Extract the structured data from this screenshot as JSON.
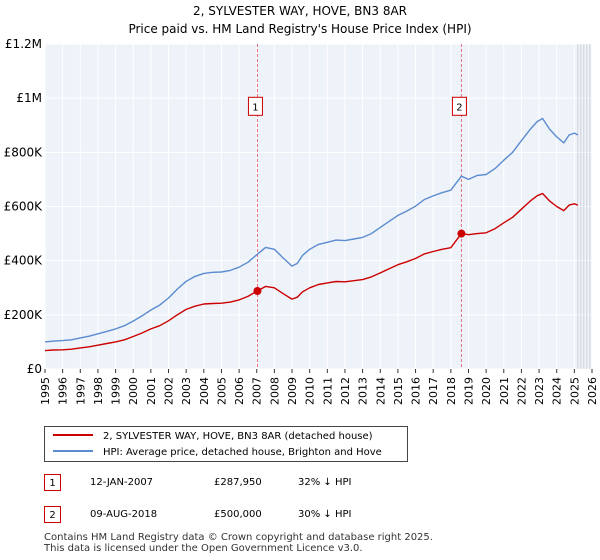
{
  "chart_data": {
    "type": "line",
    "title": "2, SYLVESTER WAY, HOVE, BN3 8AR",
    "subtitle": "Price paid vs. HM Land Registry's House Price Index (HPI)",
    "xlim": [
      1995,
      2026
    ],
    "ylim": [
      0,
      1200000
    ],
    "y_ticks": [
      {
        "value": 0,
        "label": "£0"
      },
      {
        "value": 200000,
        "label": "£200K"
      },
      {
        "value": 400000,
        "label": "£400K"
      },
      {
        "value": 600000,
        "label": "£600K"
      },
      {
        "value": 800000,
        "label": "£800K"
      },
      {
        "value": 1000000,
        "label": "£1M"
      },
      {
        "value": 1200000,
        "label": "£1.2M"
      }
    ],
    "x_ticks": [
      "1995",
      "1996",
      "1997",
      "1998",
      "1999",
      "2000",
      "2001",
      "2002",
      "2003",
      "2004",
      "2005",
      "2006",
      "2007",
      "2008",
      "2009",
      "2010",
      "2011",
      "2012",
      "2013",
      "2014",
      "2015",
      "2016",
      "2017",
      "2018",
      "2019",
      "2020",
      "2021",
      "2022",
      "2023",
      "2024",
      "2025",
      "2026"
    ],
    "grid": true,
    "series": [
      {
        "name": "2, SYLVESTER WAY, HOVE, BN3 8AR (detached house)",
        "color": "#cc0000",
        "x": [
          1995.0,
          1995.5,
          1996.0,
          1996.5,
          1997.0,
          1997.5,
          1998.0,
          1998.5,
          1999.0,
          1999.5,
          2000.0,
          2000.5,
          2001.0,
          2001.5,
          2002.0,
          2002.5,
          2003.0,
          2003.5,
          2004.0,
          2004.5,
          2005.0,
          2005.5,
          2006.0,
          2006.5,
          2007.04,
          2007.5,
          2008.0,
          2008.5,
          2009.0,
          2009.3,
          2009.6,
          2010.0,
          2010.5,
          2011.0,
          2011.5,
          2012.0,
          2012.5,
          2013.0,
          2013.5,
          2014.0,
          2014.5,
          2015.0,
          2015.5,
          2016.0,
          2016.5,
          2017.0,
          2017.5,
          2018.0,
          2018.6,
          2019.0,
          2019.5,
          2020.0,
          2020.5,
          2021.0,
          2021.5,
          2022.0,
          2022.5,
          2022.9,
          2023.2,
          2023.6,
          2024.0,
          2024.4,
          2024.7,
          2025.0,
          2025.2
        ],
        "values": [
          68000,
          70000,
          71000,
          73000,
          78000,
          82000,
          88000,
          94000,
          100000,
          108000,
          120000,
          133000,
          148000,
          160000,
          178000,
          200000,
          220000,
          232000,
          240000,
          242000,
          243000,
          247000,
          255000,
          268000,
          287950,
          305000,
          300000,
          278000,
          258000,
          265000,
          285000,
          300000,
          312000,
          318000,
          323000,
          322000,
          326000,
          330000,
          340000,
          355000,
          370000,
          385000,
          396000,
          408000,
          425000,
          434000,
          442000,
          448000,
          500000,
          496000,
          500000,
          503000,
          518000,
          540000,
          560000,
          590000,
          620000,
          640000,
          648000,
          620000,
          600000,
          585000,
          605000,
          610000,
          605000
        ]
      },
      {
        "name": "HPI: Average price, detached house, Brighton and Hove",
        "color": "#5b8bd0",
        "x": [
          1995.0,
          1995.5,
          1996.0,
          1996.5,
          1997.0,
          1997.5,
          1998.0,
          1998.5,
          1999.0,
          1999.5,
          2000.0,
          2000.5,
          2001.0,
          2001.5,
          2002.0,
          2002.5,
          2003.0,
          2003.5,
          2004.0,
          2004.5,
          2005.0,
          2005.5,
          2006.0,
          2006.5,
          2007.04,
          2007.5,
          2008.0,
          2008.5,
          2009.0,
          2009.3,
          2009.6,
          2010.0,
          2010.5,
          2011.0,
          2011.5,
          2012.0,
          2012.5,
          2013.0,
          2013.5,
          2014.0,
          2014.5,
          2015.0,
          2015.5,
          2016.0,
          2016.5,
          2017.0,
          2017.5,
          2018.0,
          2018.6,
          2019.0,
          2019.5,
          2020.0,
          2020.5,
          2021.0,
          2021.5,
          2022.0,
          2022.5,
          2022.9,
          2023.2,
          2023.6,
          2024.0,
          2024.4,
          2024.7,
          2025.0,
          2025.2
        ],
        "values": [
          100000,
          103000,
          105000,
          108000,
          115000,
          121000,
          130000,
          139000,
          148000,
          160000,
          177000,
          196000,
          218000,
          236000,
          262000,
          295000,
          324000,
          342000,
          353000,
          357000,
          358000,
          364000,
          376000,
          394000,
          424000,
          449000,
          442000,
          410000,
          380000,
          390000,
          420000,
          442000,
          460000,
          468000,
          476000,
          474000,
          480000,
          486000,
          500000,
          523000,
          545000,
          567000,
          583000,
          601000,
          626000,
          639000,
          651000,
          660000,
          712000,
          700000,
          715000,
          718000,
          740000,
          771000,
          800000,
          843000,
          885000,
          914000,
          925000,
          885000,
          857000,
          835000,
          864000,
          871000,
          864000
        ]
      }
    ],
    "annotations": [
      {
        "label": "1",
        "x": 2007.04,
        "value": 287950
      },
      {
        "label": "2",
        "x": 2018.6,
        "value": 500000
      }
    ],
    "legend_position": "bottom"
  },
  "legend": {
    "property_label": "2, SYLVESTER WAY, HOVE, BN3 8AR (detached house)",
    "hpi_label": "HPI: Average price, detached house, Brighton and Hove",
    "property_color": "#cc0000",
    "hpi_color": "#5b8bd0"
  },
  "transactions": [
    {
      "num": "1",
      "date": "12-JAN-2007",
      "price": "£287,950",
      "hpi": "32% ↓ HPI"
    },
    {
      "num": "2",
      "date": "09-AUG-2018",
      "price": "£500,000",
      "hpi": "30% ↓ HPI"
    }
  ],
  "footer": {
    "line1": "Contains HM Land Registry data © Crown copyright and database right 2025.",
    "line2": "This data is licensed under the Open Government Licence v3.0."
  }
}
